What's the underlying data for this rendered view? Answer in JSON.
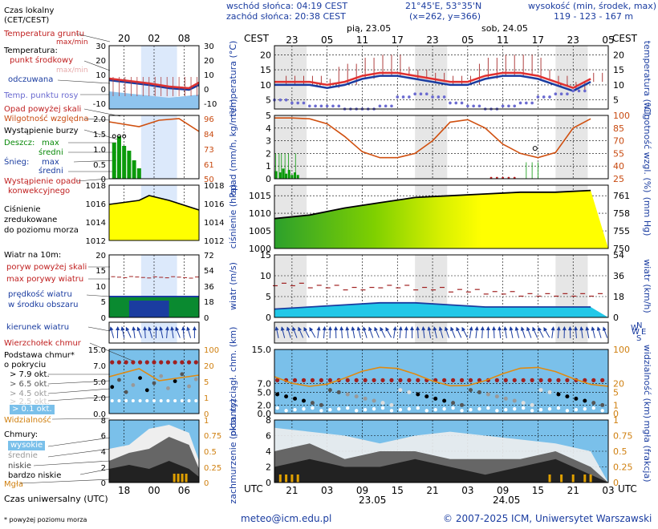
{
  "header": {
    "sunrise": "wschód słońca: 04:19 CEST",
    "sunset": "zachód słońca: 20:38 CEST",
    "coords": "21°45'E, 53°35'N",
    "grid": "(x=262, y=366)",
    "height_title": "wysokość (min, środek, max)",
    "heights": "119 - 123 - 167 m",
    "tz_cest": "CEST",
    "tz_utc": "UTC",
    "day1": "pią, 23.05",
    "day2": "sob, 24.05",
    "date1": "23.05",
    "date2": "24.05"
  },
  "legend": {
    "local_time": "Czas lokalny",
    "local_time2": "(CET/CEST)",
    "ground_temp": "Temperatura gruntu",
    "ground_temp_mm": "max/min",
    "temperature": "Temperatura:",
    "midpoint": "punkt środkowy",
    "maxmin": "max/min",
    "deviation": "odczuwana",
    "dew": "Temp. punktu rosy",
    "rain_above": "Opad powyżej skali",
    "humidity": "Wilgotność względna",
    "storm": "Wystąpienie burzy",
    "rain": "Deszcz:",
    "max": "max",
    "mean": "średni",
    "snow": "Śnieg:",
    "conv": "Wystąpienie opadu",
    "conv2": "konwekcyjnego",
    "pressure": "Ciśnienie",
    "pressure2": "zredukowane",
    "pressure3": "do poziomu morza",
    "wind10": "Wiatr na 10m:",
    "gust_above": "poryw powyżej skali",
    "gust_max": "max porywy wiatru",
    "wind_speed": "prędkość wiatru",
    "wind_area": "w środku obszaru",
    "wind_dir": "kierunek wiatru",
    "cloud_top": "Wierzchołek chmur",
    "cloud_base": "Podstawa chmur*",
    "cloud_cov": "o pokryciu",
    "okt79": "> 7.9 okt.",
    "okt65": "> 6.5 okt.",
    "okt45": "> 4.5 okt.",
    "okt25": "> 2.5 okt.",
    "okt01": "> 0.1 okt.",
    "visibility": "Widzialność",
    "clouds": "Chmury:",
    "high": "wysokie",
    "mid": "średnie",
    "low": "niskie",
    "verylow": "bardzo niskie",
    "fog": "Mgła",
    "utc_time": "Czas uniwersalny (UTC)",
    "footnote": "* powyżej poziomu morza"
  },
  "axes": {
    "temperature": "temperatura (°C)",
    "precip": "opad (mm/h, kg/m²/h)",
    "humidity": "wilgotność wzgl. (%)",
    "pressure": "ciśnienie (hPa)",
    "pressure_mm": "(mm Hg)",
    "wind": "wiatr (m/s)",
    "wind_kmh": "wiatr (km/h)",
    "cloud_km": "pion. rozciągł. chm. (km)",
    "vis": "widzialność (km)",
    "cover": "zachmurzenie (oktanty)",
    "fog_frac": "mgła (frakcja)",
    "N": "N",
    "S": "S",
    "W": "W",
    "E": "E"
  },
  "ticks": {
    "cest_top": [
      "23",
      "05",
      "11",
      "17",
      "23",
      "05",
      "11",
      "17",
      "23",
      "05"
    ],
    "utc_bottom": [
      "21",
      "03",
      "09",
      "15",
      "21",
      "03",
      "09",
      "15",
      "21",
      "03"
    ],
    "legend_cest": [
      "20",
      "02",
      "08"
    ],
    "legend_utc": [
      "18",
      "00",
      "06"
    ],
    "temp_left": [
      "20",
      "15",
      "10",
      "5"
    ],
    "temp_right": [
      "20",
      "15",
      "10",
      "5"
    ],
    "temp_leg": [
      "30",
      "20",
      "10",
      "0",
      "-10"
    ],
    "precip_left": [
      "5",
      "4",
      "3",
      "2",
      "1",
      "0"
    ],
    "hum_right": [
      "100",
      "85",
      "70",
      "55",
      "40",
      "25"
    ],
    "precip_leg": [
      "2.0",
      "1.5",
      "1.0",
      "0.5",
      "0"
    ],
    "hum_leg": [
      "96",
      "84",
      "73",
      "61",
      "50"
    ],
    "press_left": [
      "1015",
      "1010",
      "1005",
      "1000"
    ],
    "press_right": [
      "761",
      "758",
      "755",
      "750"
    ],
    "press_leg": [
      "1018",
      "1016",
      "1014",
      "1012"
    ],
    "wind_left": [
      "15",
      "10",
      "5",
      "0"
    ],
    "wind_right": [
      "54",
      "36",
      "18",
      "0"
    ],
    "wind_leg": [
      "20",
      "15",
      "10",
      "5",
      "0"
    ],
    "wind_leg_r": [
      "72",
      "54",
      "36",
      "18",
      "0"
    ],
    "cloud_left": [
      "15.0",
      "7.0",
      "5.0",
      "2.0",
      "0.0"
    ],
    "vis_right": [
      "100",
      "20",
      "5",
      "1",
      "0"
    ],
    "cover_left": [
      "8",
      "6",
      "4",
      "2",
      "0"
    ],
    "fog_right": [
      "1",
      "0.75",
      "0.5",
      "0.25",
      "0"
    ]
  },
  "footer": {
    "email": "meteo@icm.edu.pl",
    "copyright": "© 2007-2025 ICM, Uniwersytet Warszawski"
  },
  "chart_data": [
    {
      "type": "line",
      "name": "temperature",
      "x": [
        0,
        3,
        6,
        9,
        12,
        15,
        18,
        21,
        24,
        27,
        30,
        33,
        36,
        39,
        42,
        45,
        48,
        51,
        54
      ],
      "series": [
        {
          "name": "punkt środkowy",
          "values": [
            11,
            11,
            11,
            10,
            11,
            13,
            14,
            14,
            13,
            12,
            11,
            11,
            13,
            14,
            14,
            13,
            11,
            9,
            12
          ]
        },
        {
          "name": "odczuwana",
          "values": [
            10,
            10,
            10,
            9,
            10,
            12,
            13,
            13,
            12,
            11,
            10,
            10,
            12,
            13,
            13,
            12,
            10,
            8,
            11
          ]
        },
        {
          "name": "Temp. punktu rosy",
          "values": [
            5,
            4,
            3,
            3,
            2,
            2,
            3,
            6,
            7,
            6,
            4,
            3,
            2,
            3,
            4,
            6,
            7,
            8,
            8
          ]
        }
      ],
      "ylim": [
        2,
        23
      ]
    },
    {
      "type": "area",
      "name": "humidity",
      "x": [
        0,
        3,
        6,
        9,
        12,
        15,
        18,
        21,
        24,
        27,
        30,
        33,
        36,
        39,
        42,
        45,
        48,
        51,
        54
      ],
      "series": [
        {
          "name": "Wilgotność względna",
          "values": [
            97,
            97,
            96,
            90,
            75,
            57,
            50,
            50,
            55,
            70,
            92,
            95,
            85,
            66,
            55,
            50,
            56,
            85,
            96
          ]
        }
      ],
      "ylim": [
        25,
        100
      ]
    },
    {
      "type": "area",
      "name": "pressure",
      "x": [
        0,
        6,
        12,
        18,
        24,
        30,
        36,
        42,
        48,
        54
      ],
      "series": [
        {
          "name": "Ciśnienie",
          "values": [
            1008.5,
            1009.5,
            1011.5,
            1013,
            1014.5,
            1015,
            1015.5,
            1016,
            1016,
            1016.5
          ]
        }
      ],
      "ylim": [
        1000,
        1018
      ]
    },
    {
      "type": "area",
      "name": "wind",
      "x": [
        0,
        6,
        12,
        18,
        24,
        30,
        36,
        42,
        48,
        54
      ],
      "series": [
        {
          "name": "prędkość wiatru",
          "values": [
            2,
            2.5,
            3,
            3.5,
            3.5,
            3,
            2.5,
            2.5,
            2.5,
            2.5
          ]
        },
        {
          "name": "max porywy wiatru",
          "values": [
            8,
            7.5,
            7,
            7.5,
            7,
            6.5,
            6,
            5.5,
            5.5,
            5.5
          ]
        }
      ],
      "ylim": [
        0,
        15
      ]
    },
    {
      "type": "area",
      "name": "cloud_cover",
      "x": [
        0,
        6,
        12,
        18,
        24,
        30,
        36,
        42,
        48,
        54
      ],
      "series": [
        {
          "name": "wysokie",
          "values": [
            7,
            6.5,
            6,
            5,
            6,
            6.5,
            6,
            5.5,
            5,
            4
          ]
        },
        {
          "name": "niskie",
          "values": [
            4,
            5,
            3,
            4,
            4,
            3,
            3,
            3,
            4,
            2
          ]
        },
        {
          "name": "bardzo niskie",
          "values": [
            2,
            3,
            2,
            2,
            3,
            2,
            1,
            2,
            3,
            1
          ]
        }
      ],
      "ylim": [
        0,
        8
      ]
    }
  ]
}
